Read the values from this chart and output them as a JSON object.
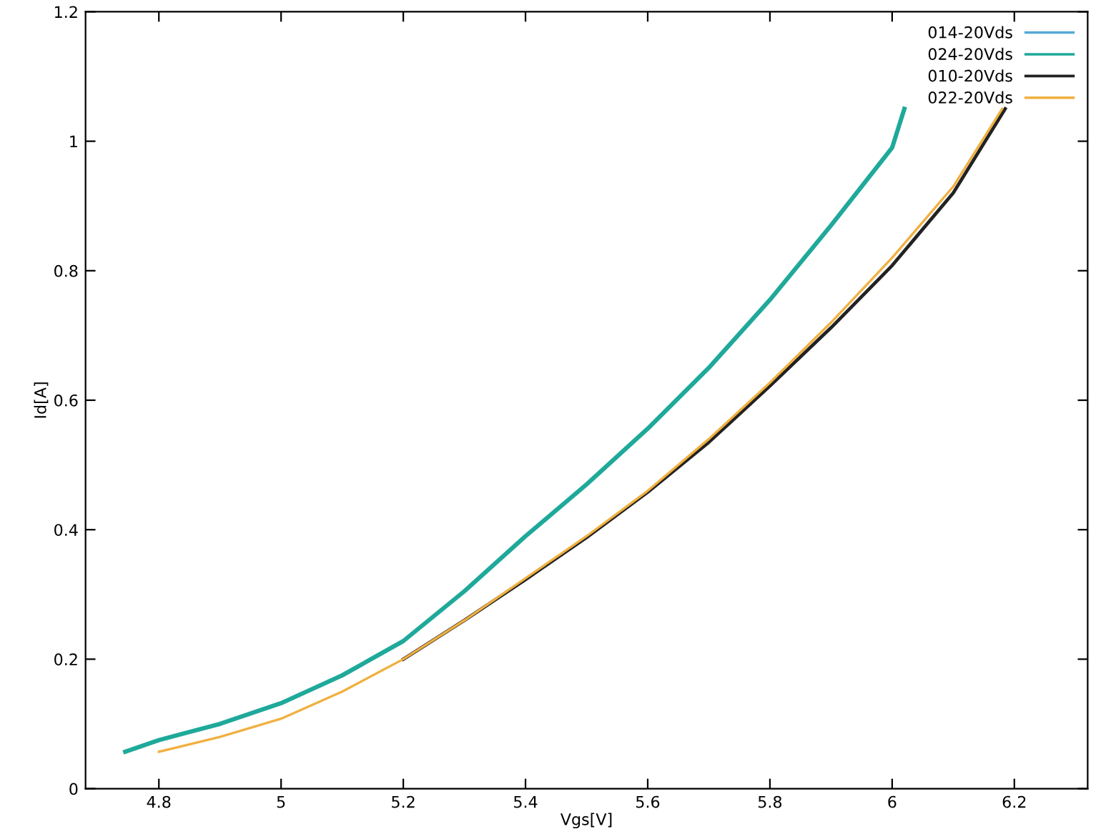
{
  "chart_data": {
    "type": "line",
    "xlabel": "Vgs[V]",
    "ylabel": "Id[A]",
    "xlim": [
      4.68,
      6.32
    ],
    "ylim": [
      0,
      1.2
    ],
    "xticks": [
      4.8,
      5,
      5.2,
      5.4,
      5.6,
      5.8,
      6,
      6.2
    ],
    "yticks": [
      0,
      0.2,
      0.4,
      0.6,
      0.8,
      1,
      1.2
    ],
    "grid": false,
    "legend": "top right",
    "marker": "none",
    "line_style": "solid",
    "series": [
      {
        "name": "014-20Vds",
        "color": "#56a8d4"
      },
      {
        "name": "024-20Vds",
        "color": "#1fa99a",
        "x": [
          4.745,
          4.8,
          4.9,
          5.0,
          5.1,
          5.2,
          5.3,
          5.4,
          5.5,
          5.6,
          5.7,
          5.8,
          5.9,
          6.0,
          6.02
        ],
        "values": [
          0.057,
          0.075,
          0.1,
          0.132,
          0.175,
          0.228,
          0.305,
          0.39,
          0.47,
          0.556,
          0.65,
          0.755,
          0.87,
          0.99,
          1.05
        ]
      },
      {
        "name": "010-20Vds",
        "color": "#222222",
        "x": [
          5.2,
          5.3,
          5.4,
          5.5,
          5.6,
          5.7,
          5.8,
          5.9,
          6.0,
          6.1,
          6.185
        ],
        "values": [
          0.2,
          0.26,
          0.323,
          0.388,
          0.458,
          0.535,
          0.622,
          0.712,
          0.808,
          0.92,
          1.05
        ]
      },
      {
        "name": "022-20Vds",
        "color": "#f0b040",
        "x": [
          4.8,
          4.9,
          5.0,
          5.1,
          5.2,
          5.3,
          5.4,
          5.5,
          5.6,
          5.7,
          5.8,
          5.9,
          6.0,
          6.1,
          6.18
        ],
        "values": [
          0.057,
          0.08,
          0.108,
          0.15,
          0.2,
          0.26,
          0.325,
          0.39,
          0.46,
          0.54,
          0.627,
          0.72,
          0.82,
          0.93,
          1.05
        ]
      }
    ]
  }
}
